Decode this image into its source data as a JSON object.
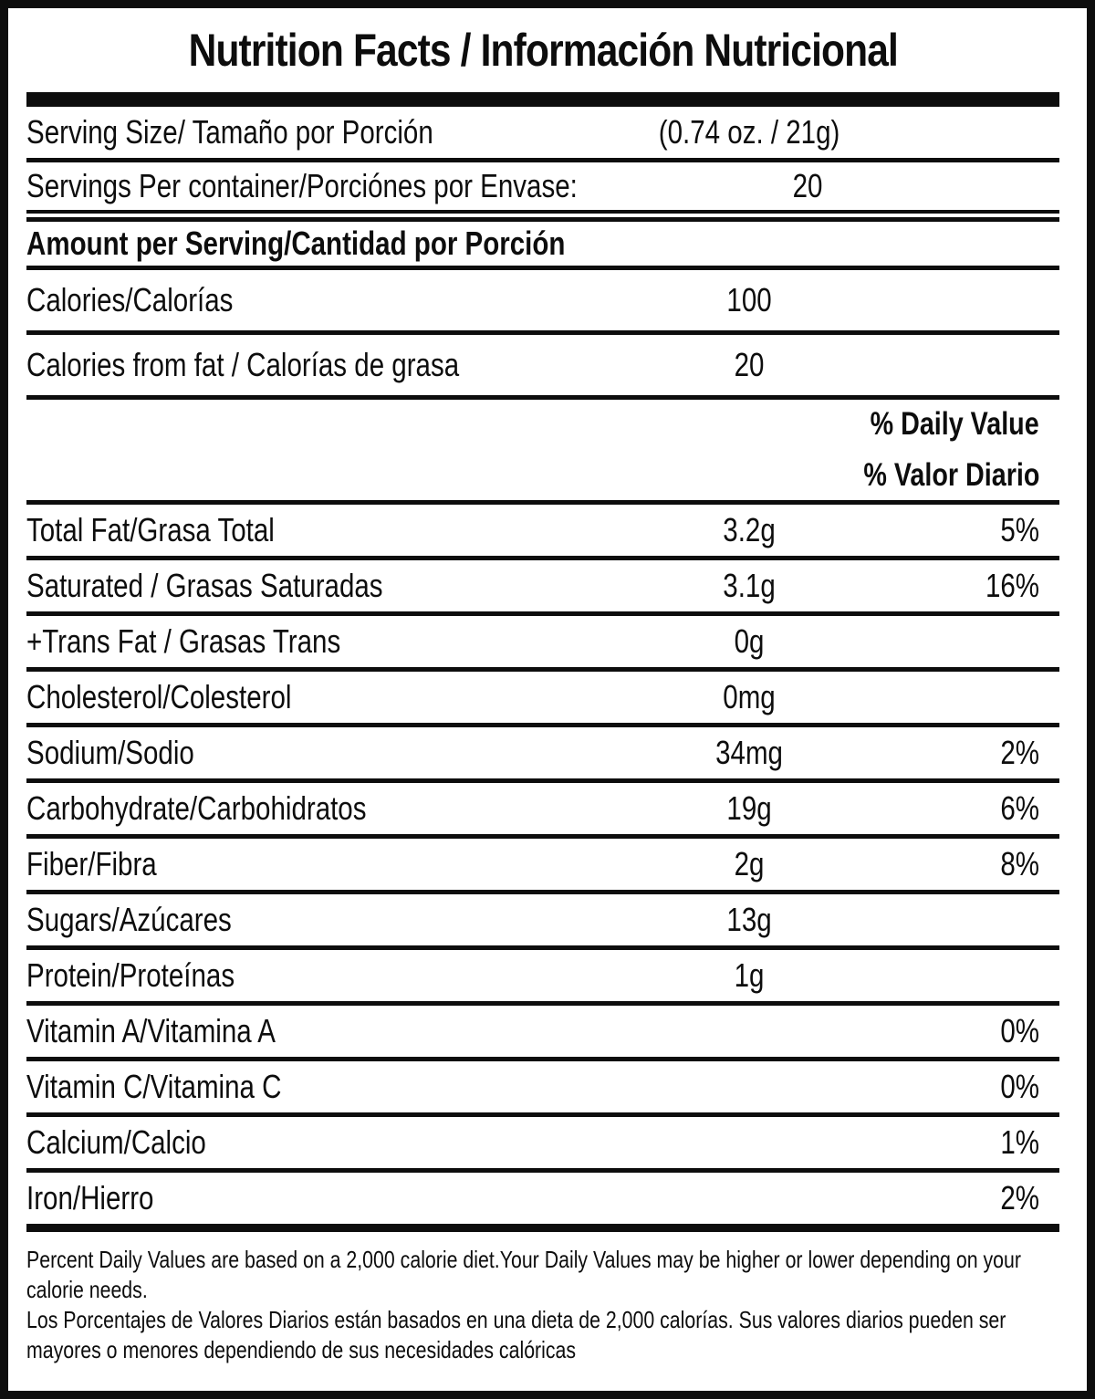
{
  "title": "Nutrition Facts / Información Nutricional",
  "serving_info": {
    "serving_size": {
      "label": "Serving Size/ Tamaño por Porción",
      "value": "(0.74 oz. / 21g)"
    },
    "servings_per_container": {
      "label": "Servings Per container/Porciónes por Envase:",
      "value": "20"
    }
  },
  "section_headers": {
    "amount_per_serving": "Amount per Serving/Cantidad por Porción",
    "daily_value_en": "% Daily Value",
    "daily_value_es": "% Valor Diario"
  },
  "calories": {
    "label": "Calories/Calorías",
    "value": "100"
  },
  "calories_from_fat": {
    "label": "Calories from fat / Calorías de grasa",
    "value": "20"
  },
  "nutrients": [
    {
      "label": "Total Fat/Grasa Total",
      "amount": "3.2g",
      "percent": "5%"
    },
    {
      "label": "Saturated / Grasas Saturadas",
      "amount": "3.1g",
      "percent": "16%"
    },
    {
      "label": "+Trans Fat / Grasas Trans",
      "amount": "0g",
      "percent": ""
    },
    {
      "label": "Cholesterol/Colesterol",
      "amount": "0mg",
      "percent": ""
    },
    {
      "label": "Sodium/Sodio",
      "amount": "34mg",
      "percent": "2%"
    },
    {
      "label": "Carbohydrate/Carbohidratos",
      "amount": "19g",
      "percent": "6%"
    },
    {
      "label": "Fiber/Fibra",
      "amount": "2g",
      "percent": "8%"
    },
    {
      "label": "Sugars/Azúcares",
      "amount": "13g",
      "percent": ""
    },
    {
      "label": "Protein/Proteínas",
      "amount": "1g",
      "percent": ""
    },
    {
      "label": "Vitamin A/Vitamina A",
      "amount": "",
      "percent": "0%"
    },
    {
      "label": "Vitamin C/Vitamina C",
      "amount": "",
      "percent": "0%"
    },
    {
      "label": "Calcium/Calcio",
      "amount": "",
      "percent": "1%"
    },
    {
      "label": "Iron/Hierro",
      "amount": "",
      "percent": "2%"
    }
  ],
  "footnotes": {
    "en": "Percent Daily Values are based on a 2,000 calorie diet.Your Daily Values may be higher or lower depending on your calorie needs.",
    "es": "Los Porcentajes de Valores Diarios están basados en una dieta de 2,000 calorías. Sus valores diarios pueden ser mayores o menores dependiendo de sus necesidades calóricas"
  },
  "colors": {
    "ink": "#0d0d0d",
    "paper": "#ffffff"
  }
}
